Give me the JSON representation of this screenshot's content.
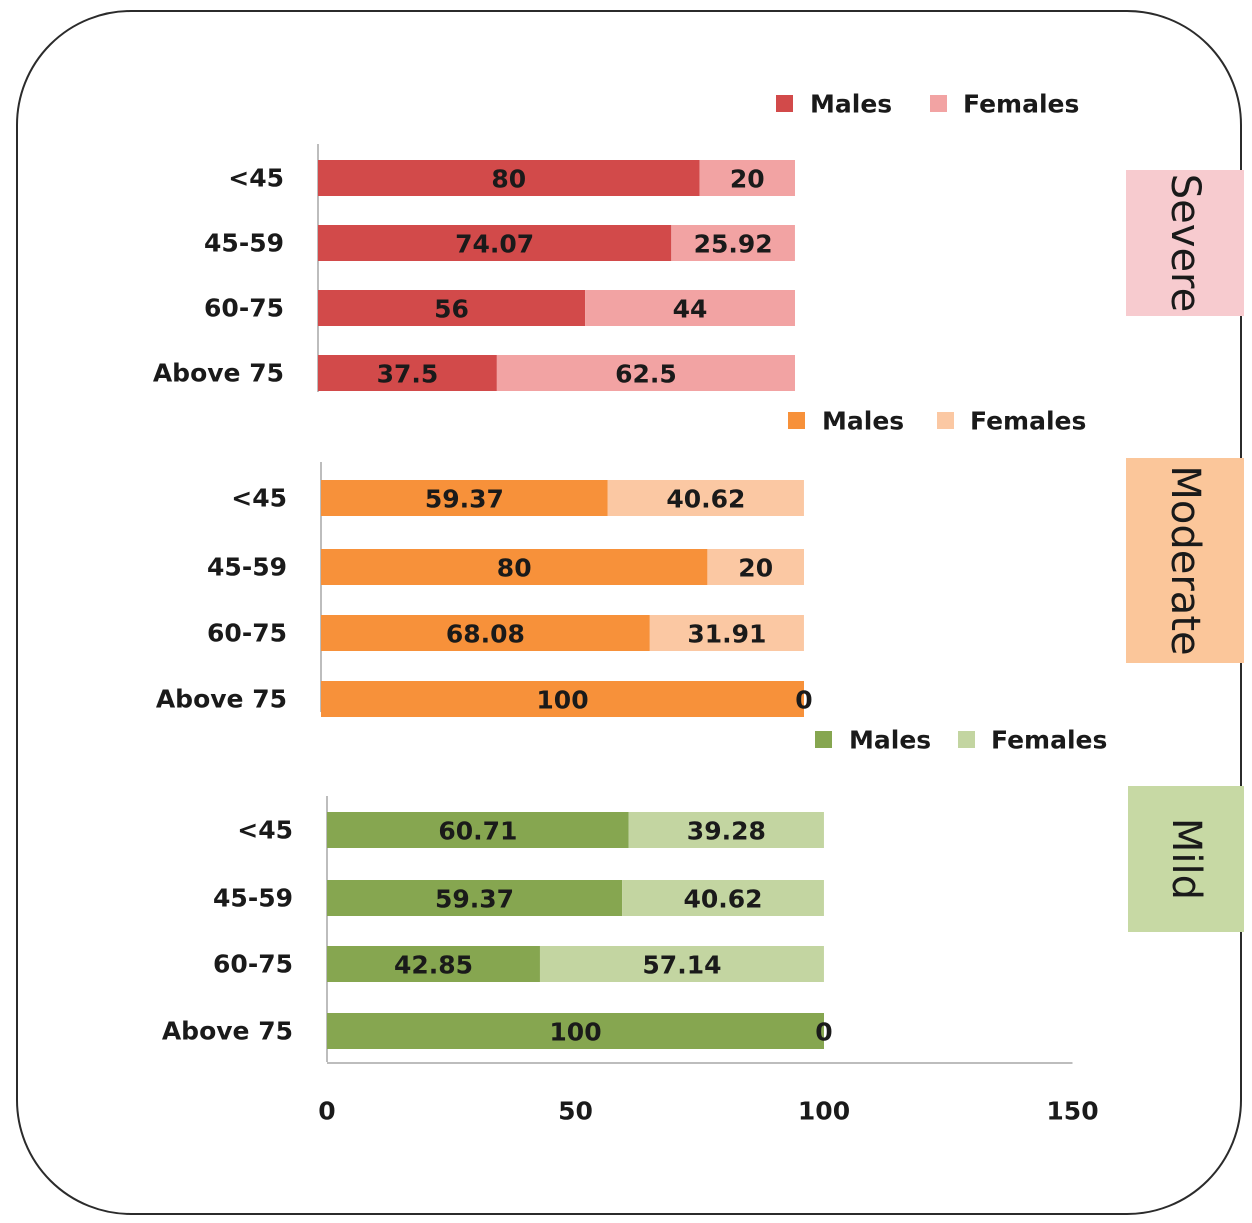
{
  "chart_data": {
    "type": "bar",
    "orientation": "horizontal",
    "stacked": true,
    "xlim": [
      0,
      150
    ],
    "x_ticks": [
      "0",
      "50",
      "100",
      "150"
    ],
    "grid": false,
    "legend_position": "top-right",
    "panels": [
      {
        "severity": "Severe",
        "categories": [
          "<45",
          "45-59",
          "60-75",
          "Above 75"
        ],
        "series": [
          {
            "name": "Males",
            "color": "#d24a4a",
            "values": [
              80,
              74.07,
              56,
              37.5
            ],
            "labels": [
              "80",
              "74.07",
              "56",
              "37.5"
            ]
          },
          {
            "name": "Females",
            "color": "#f2a3a3",
            "values": [
              20,
              25.92,
              44,
              62.5
            ],
            "labels": [
              "20",
              "25.92",
              "44",
              "62.5"
            ]
          }
        ],
        "band_color": "#f7cbcf"
      },
      {
        "severity": "Moderate",
        "categories": [
          "<45",
          "45-59",
          "60-75",
          "Above 75"
        ],
        "series": [
          {
            "name": "Males",
            "color": "#f7913a",
            "values": [
              59.37,
              80,
              68.08,
              100
            ],
            "labels": [
              "59.37",
              "80",
              "68.08",
              "100"
            ]
          },
          {
            "name": "Females",
            "color": "#fbc8a3",
            "values": [
              40.62,
              20,
              31.91,
              0
            ],
            "labels": [
              "40.62",
              "20",
              "31.91",
              "0"
            ]
          }
        ],
        "band_color": "#fbc69a"
      },
      {
        "severity": "Mild",
        "categories": [
          "<45",
          "45-59",
          "60-75",
          "Above 75"
        ],
        "series": [
          {
            "name": "Males",
            "color": "#86a650",
            "values": [
              60.71,
              59.37,
              42.85,
              100
            ],
            "labels": [
              "60.71",
              "59.37",
              "42.85",
              "100"
            ]
          },
          {
            "name": "Females",
            "color": "#c3d5a1",
            "values": [
              39.28,
              40.62,
              57.14,
              0
            ],
            "labels": [
              "39.28",
              "40.62",
              "57.14",
              "0"
            ]
          }
        ],
        "band_color": "#c7d9a4"
      }
    ]
  }
}
